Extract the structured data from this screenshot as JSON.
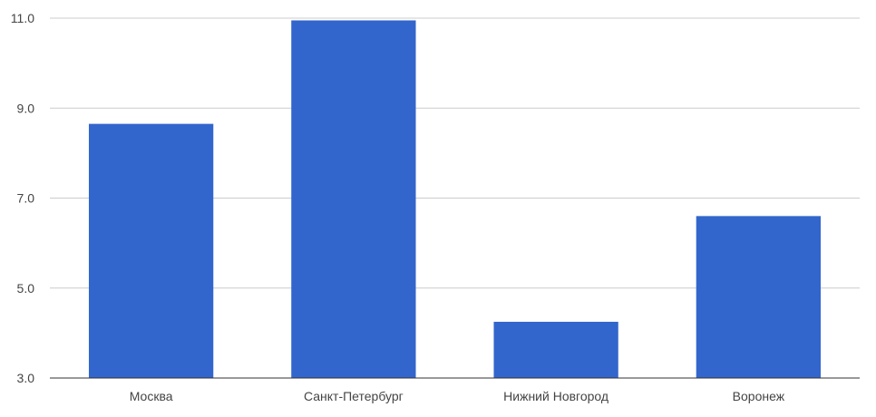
{
  "chart_data": {
    "type": "bar",
    "title": "",
    "xlabel": "",
    "ylabel": "",
    "categories": [
      "Москва",
      "Санкт-Петербург",
      "Нижний Новгород",
      "Воронеж"
    ],
    "values": [
      8.65,
      10.95,
      4.25,
      6.6
    ],
    "ylim": [
      3.0,
      11.0
    ],
    "yticks": [
      "3.0",
      "5.0",
      "7.0",
      "9.0",
      "11.0"
    ],
    "grid": true,
    "legend": "none",
    "bar_color": "#3366cc",
    "grid_color": "#cccccc",
    "axis_color": "#333333",
    "label_color": "#444444"
  }
}
